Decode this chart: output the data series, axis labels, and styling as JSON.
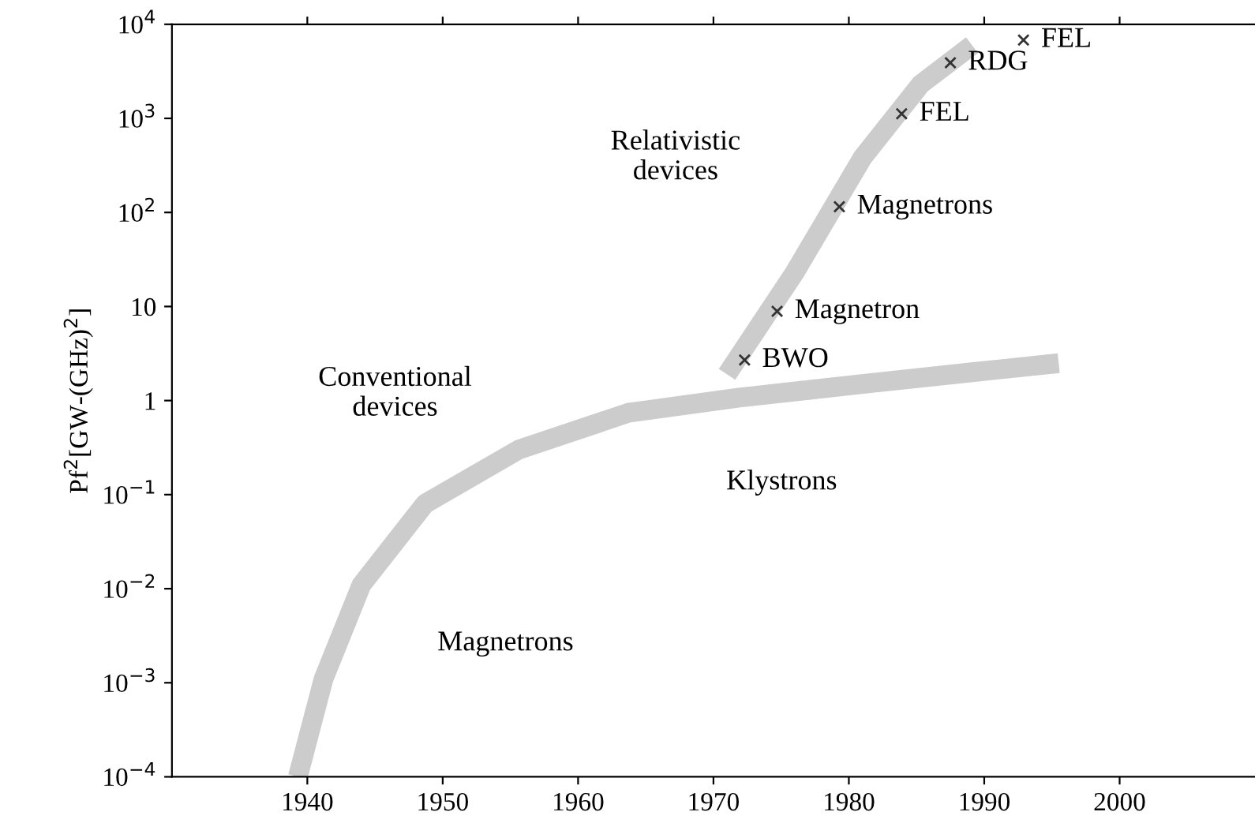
{
  "chart_data": {
    "type": "scatter",
    "ylabel": "Pf$^{2}$[GW-(GHz)$^{2}$]",
    "xlim": [
      1930,
      2010
    ],
    "xticks": [
      1940,
      1950,
      1960,
      1970,
      1980,
      1990,
      2000
    ],
    "ylim": [
      0.0001,
      10000
    ],
    "log": "y",
    "yticks": [
      {
        "value": 0.0001,
        "label": "10$^{−4}$"
      },
      {
        "value": 0.001,
        "label": "10$^{−3}$"
      },
      {
        "value": 0.01,
        "label": "10$^{−2}$"
      },
      {
        "value": 0.1,
        "label": "10$^{−1}$"
      },
      1,
      10,
      {
        "value": 100,
        "label": "10$^{2}$"
      },
      {
        "value": 1000,
        "label": "10$^{3}$"
      },
      {
        "value": 10000,
        "label": "10$^{4}$"
      }
    ],
    "grid": false,
    "legend": false,
    "series": [
      {
        "type": "line",
        "color": "#cccccc",
        "x": [
          1939.3,
          1941.2,
          1944.0,
          1948.7,
          1955.6,
          1963.7,
          1971.8,
          1981.0,
          1989.1,
          1995.5
        ],
        "values": [
          0.0001,
          0.0011,
          0.011,
          0.08,
          0.3,
          0.74,
          1.07,
          1.5,
          2.0,
          2.5
        ]
      },
      {
        "type": "line",
        "color": "#cccccc",
        "x": [
          1971.0,
          1976.0,
          1981.0,
          1985.3,
          1989.1
        ],
        "values": [
          1.9,
          23,
          380,
          2300,
          6000
        ]
      },
      {
        "color": "#333333",
        "marker": "cross",
        "x": [
          1972.3,
          1974.7,
          1979.3,
          1983.9,
          1987.5,
          1992.9
        ],
        "values": [
          2.7,
          8.9,
          115,
          1120,
          3900,
          6800
        ]
      }
    ],
    "annotations": [
      {
        "text": "BWO",
        "x": 1972.3,
        "y": 2.7
      },
      {
        "text": "Magnetron",
        "x": 1974.7,
        "y": 8.9
      },
      {
        "text": "Magnetrons",
        "x": 1979.3,
        "y": 115
      },
      {
        "text": "FEL",
        "x": 1983.9,
        "y": 1120
      },
      {
        "text": "RDG",
        "x": 1987.5,
        "y": 3900
      },
      {
        "text": "FEL",
        "x": 1992.9,
        "y": 6800
      },
      "Relativistic\ndevices",
      "Conventional\ndevices",
      "Klystrons",
      "Magnetrons"
    ]
  }
}
